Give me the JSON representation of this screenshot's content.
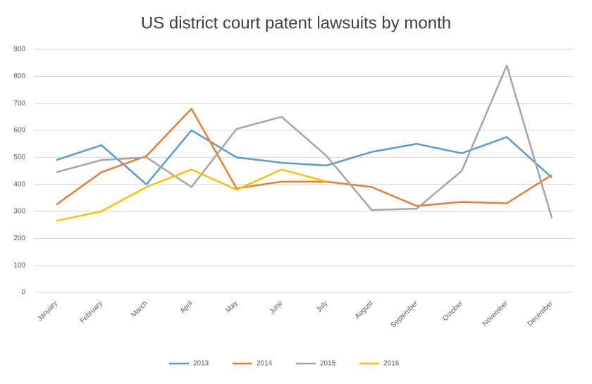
{
  "chart_data": {
    "type": "line",
    "title": "US district court patent lawsuits by month",
    "categories": [
      "January",
      "February",
      "March",
      "April",
      "May",
      "June",
      "July",
      "August",
      "September",
      "October",
      "November",
      "December"
    ],
    "series": [
      {
        "name": "2013",
        "color": "#5b9bd5",
        "values": [
          490,
          545,
          400,
          600,
          500,
          480,
          470,
          520,
          550,
          515,
          575,
          425
        ]
      },
      {
        "name": "2014",
        "color": "#ed7d31",
        "values": [
          325,
          445,
          505,
          680,
          385,
          410,
          410,
          390,
          320,
          335,
          330,
          435
        ]
      },
      {
        "name": "2015",
        "color": "#a5a5a5",
        "values": [
          445,
          490,
          500,
          390,
          605,
          650,
          505,
          305,
          310,
          450,
          840,
          275
        ]
      },
      {
        "name": "2016",
        "color": "#ffc000",
        "values": [
          265,
          300,
          390,
          455,
          380,
          455,
          410,
          null,
          null,
          null,
          null,
          null
        ]
      }
    ],
    "ylim": [
      0,
      900
    ],
    "yticks": [
      0,
      100,
      200,
      300,
      400,
      500,
      600,
      700,
      800,
      900
    ],
    "grid": true,
    "legend": "bottom"
  }
}
